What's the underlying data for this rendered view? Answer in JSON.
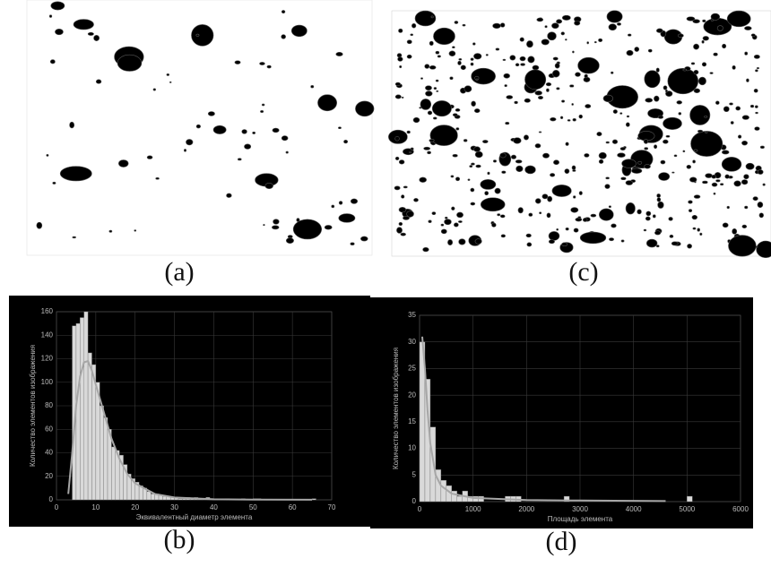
{
  "images": [
    {
      "label": "(a)"
    },
    {
      "label": "(c)"
    }
  ],
  "chart_data": [
    {
      "type": "histogram",
      "panel_label": "(b)",
      "xlabel": "Эквивалентный диаметр элемента",
      "ylabel": "Количество элементов изображения",
      "bins": [
        4,
        5,
        6,
        7,
        8,
        9,
        10,
        11,
        12,
        13,
        14,
        15,
        16,
        17,
        18,
        19,
        20,
        21,
        22,
        23,
        24,
        25,
        26,
        27,
        28,
        29,
        30,
        31,
        32,
        33,
        34,
        35,
        36,
        37,
        38,
        39,
        40,
        41,
        42,
        43,
        44,
        45,
        46,
        47,
        48,
        49,
        50,
        51,
        52,
        53,
        54,
        55,
        56,
        57,
        58,
        59,
        60,
        61,
        62,
        63,
        64,
        65,
        66,
        67
      ],
      "counts": [
        148,
        150,
        155,
        160,
        125,
        115,
        100,
        80,
        70,
        60,
        45,
        42,
        38,
        30,
        22,
        18,
        15,
        12,
        10,
        7,
        5,
        5,
        4,
        3,
        3,
        2,
        2,
        1,
        1,
        2,
        1,
        2,
        1,
        1,
        2,
        1,
        1,
        0,
        0,
        1,
        0,
        0,
        0,
        1,
        0,
        0,
        1,
        1,
        0,
        0,
        0,
        0,
        0,
        0,
        0,
        0,
        0,
        0,
        0,
        0,
        0,
        1,
        0
      ],
      "color": "#d9d9d9",
      "fit": {
        "x": [
          3,
          4,
          5,
          6,
          7,
          8,
          9,
          10,
          12,
          14,
          16,
          18,
          20,
          25,
          30,
          40,
          50,
          65
        ],
        "values": [
          5,
          40,
          80,
          105,
          117,
          118,
          110,
          98,
          75,
          52,
          35,
          22,
          14,
          5,
          2,
          0.5,
          0.2,
          0.1
        ],
        "color": "#a6a6a6"
      },
      "xlim": [
        0,
        70
      ],
      "xticks": [
        0,
        10,
        20,
        30,
        40,
        50,
        60,
        70
      ],
      "ylim": [
        0,
        160
      ],
      "yticks": [
        0,
        20,
        40,
        60,
        80,
        100,
        120,
        140,
        160
      ],
      "grid": true
    },
    {
      "type": "histogram",
      "panel_label": "(d)",
      "xlabel": "Площадь элемента",
      "ylabel": "Количество элементов изображения",
      "bins": [
        0,
        100,
        200,
        300,
        400,
        500,
        600,
        700,
        800,
        900,
        1000,
        1100,
        1200,
        1300,
        1400,
        1500,
        1600,
        1700,
        1800,
        1900,
        2000,
        2100,
        2200,
        2300,
        2400,
        2500,
        2600,
        2700,
        2800,
        2900,
        3000,
        3100,
        3200,
        3300,
        3400,
        3500,
        3600,
        3700,
        3800,
        3900,
        4000,
        4100,
        4200,
        4300,
        4400,
        4500,
        4600,
        4700,
        4800,
        4900,
        5000,
        5100,
        5200
      ],
      "counts": [
        30,
        23,
        14,
        6,
        4,
        3,
        2,
        1,
        2,
        1,
        1,
        1,
        0,
        0,
        0,
        0,
        1,
        1,
        1,
        0,
        0,
        0,
        0,
        0,
        0,
        0,
        0,
        1,
        0,
        0,
        0,
        0,
        0,
        0,
        0,
        0,
        0,
        0,
        0,
        0,
        0,
        0,
        0,
        0,
        0,
        0,
        0,
        0,
        0,
        0,
        1,
        0
      ],
      "color": "#d9d9d9",
      "fit": {
        "x": [
          50,
          100,
          150,
          200,
          300,
          400,
          600,
          1000,
          2000,
          3000,
          4600
        ],
        "values": [
          31,
          25,
          17,
          11,
          5,
          3,
          1.5,
          0.7,
          0.3,
          0.2,
          0.1
        ],
        "color": "#a6a6a6"
      },
      "xlim": [
        0,
        6000
      ],
      "xticks": [
        0,
        1000,
        2000,
        3000,
        4000,
        5000,
        6000
      ],
      "ylim": [
        0,
        35
      ],
      "yticks": [
        0,
        5,
        10,
        15,
        20,
        25,
        30,
        35
      ],
      "grid": true
    }
  ]
}
